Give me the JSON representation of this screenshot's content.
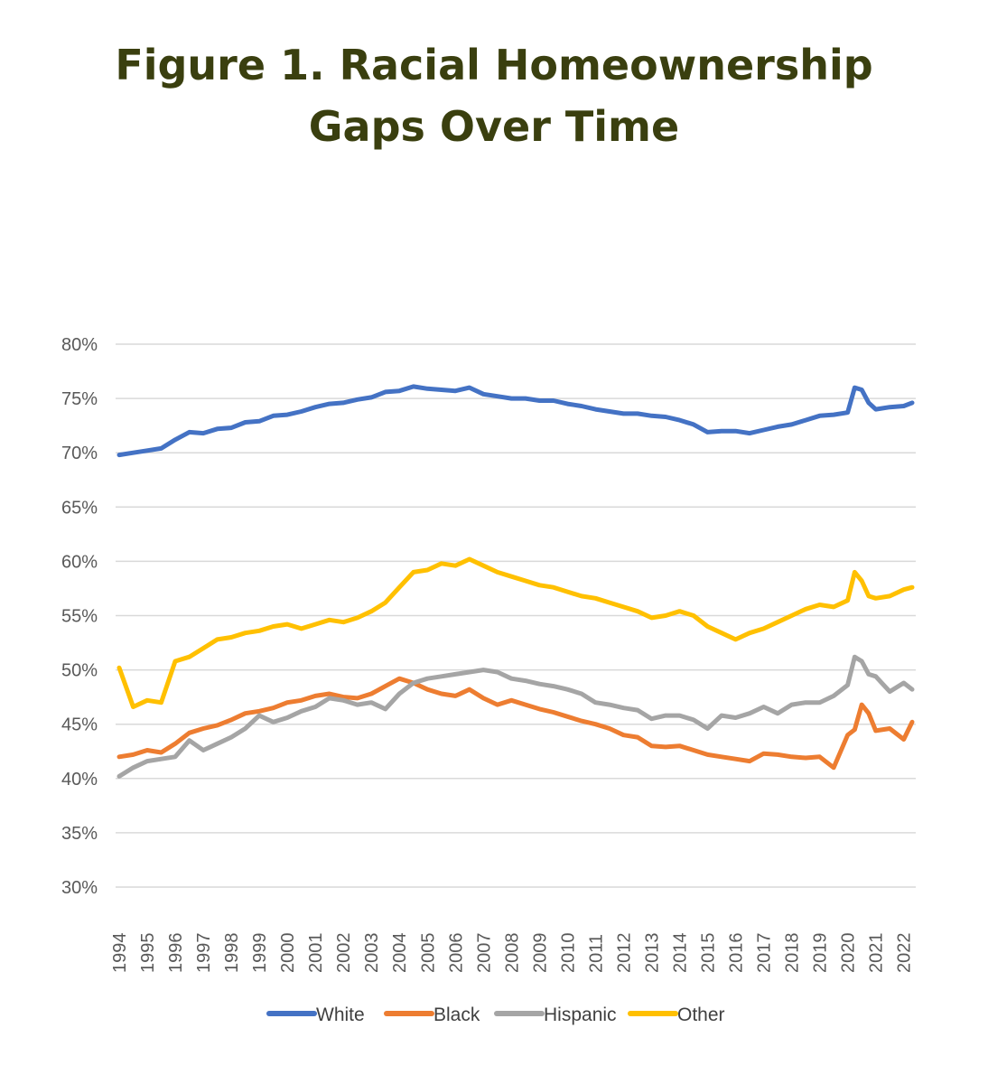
{
  "title": {
    "line1": "Figure 1. Racial Homeownership",
    "line2": "Gaps Over Time"
  },
  "chart_data": {
    "type": "line",
    "title": "Figure 1. Racial Homeownership Gaps Over Time",
    "xlabel": "",
    "ylabel": "",
    "ylim": [
      30,
      80
    ],
    "yticks": [
      30,
      35,
      40,
      45,
      50,
      55,
      60,
      65,
      70,
      75,
      80
    ],
    "ytick_labels": [
      "30%",
      "35%",
      "40%",
      "45%",
      "50%",
      "55%",
      "60%",
      "65%",
      "70%",
      "75%",
      "80%"
    ],
    "xlim": [
      1994,
      2022.3
    ],
    "xtick_labels": [
      "1994",
      "1995",
      "1996",
      "1997",
      "1998",
      "1999",
      "2000",
      "2001",
      "2002",
      "2003",
      "2004",
      "2005",
      "2006",
      "2007",
      "2008",
      "2009",
      "2010",
      "2011",
      "2012",
      "2013",
      "2014",
      "2015",
      "2016",
      "2017",
      "2018",
      "2019",
      "2020",
      "2021",
      "2022"
    ],
    "grid": true,
    "legend_position": "bottom",
    "series": [
      {
        "name": "White",
        "color": "#4472c4",
        "x": [
          1994,
          1994.5,
          1995,
          1995.5,
          1996,
          1996.5,
          1997,
          1997.5,
          1998,
          1998.5,
          1999,
          1999.5,
          2000,
          2000.5,
          2001,
          2001.5,
          2002,
          2002.5,
          2003,
          2003.5,
          2004,
          2004.5,
          2005,
          2005.5,
          2006,
          2006.5,
          2007,
          2007.5,
          2008,
          2008.5,
          2009,
          2009.5,
          2010,
          2010.5,
          2011,
          2011.5,
          2012,
          2012.5,
          2013,
          2013.5,
          2014,
          2014.5,
          2015,
          2015.5,
          2016,
          2016.5,
          2017,
          2017.5,
          2018,
          2018.5,
          2019,
          2019.5,
          2020,
          2020.25,
          2020.5,
          2020.75,
          2021,
          2021.5,
          2022,
          2022.3
        ],
        "values": [
          69.8,
          70.0,
          70.2,
          70.4,
          71.2,
          71.9,
          71.8,
          72.2,
          72.3,
          72.8,
          72.9,
          73.4,
          73.5,
          73.8,
          74.2,
          74.5,
          74.6,
          74.9,
          75.1,
          75.6,
          75.7,
          76.1,
          75.9,
          75.8,
          75.7,
          76.0,
          75.4,
          75.2,
          75.0,
          75.0,
          74.8,
          74.8,
          74.5,
          74.3,
          74.0,
          73.8,
          73.6,
          73.6,
          73.4,
          73.3,
          73.0,
          72.6,
          71.9,
          72.0,
          72.0,
          71.8,
          72.1,
          72.4,
          72.6,
          73.0,
          73.4,
          73.5,
          73.7,
          76.0,
          75.8,
          74.6,
          74.0,
          74.2,
          74.3,
          74.6
        ]
      },
      {
        "name": "Black",
        "color": "#ed7d31",
        "x": [
          1994,
          1994.5,
          1995,
          1995.5,
          1996,
          1996.5,
          1997,
          1997.5,
          1998,
          1998.5,
          1999,
          1999.5,
          2000,
          2000.5,
          2001,
          2001.5,
          2002,
          2002.5,
          2003,
          2003.5,
          2004,
          2004.5,
          2005,
          2005.5,
          2006,
          2006.5,
          2007,
          2007.5,
          2008,
          2008.5,
          2009,
          2009.5,
          2010,
          2010.5,
          2011,
          2011.5,
          2012,
          2012.5,
          2013,
          2013.5,
          2014,
          2014.5,
          2015,
          2015.5,
          2016,
          2016.5,
          2017,
          2017.5,
          2018,
          2018.5,
          2019,
          2019.5,
          2020,
          2020.25,
          2020.5,
          2020.75,
          2021,
          2021.5,
          2022,
          2022.3
        ],
        "values": [
          42.0,
          42.2,
          42.6,
          42.4,
          43.2,
          44.2,
          44.6,
          44.9,
          45.4,
          46.0,
          46.2,
          46.5,
          47.0,
          47.2,
          47.6,
          47.8,
          47.5,
          47.4,
          47.8,
          48.5,
          49.2,
          48.8,
          48.2,
          47.8,
          47.6,
          48.2,
          47.4,
          46.8,
          47.2,
          46.8,
          46.4,
          46.1,
          45.7,
          45.3,
          45.0,
          44.6,
          44.0,
          43.8,
          43.0,
          42.9,
          43.0,
          42.6,
          42.2,
          42.0,
          41.8,
          41.6,
          42.3,
          42.2,
          42.0,
          41.9,
          42.0,
          41.0,
          44.0,
          44.5,
          46.8,
          46.0,
          44.4,
          44.6,
          43.6,
          45.2
        ]
      },
      {
        "name": "Hispanic",
        "color": "#a5a5a5",
        "x": [
          1994,
          1994.5,
          1995,
          1995.5,
          1996,
          1996.5,
          1997,
          1997.5,
          1998,
          1998.5,
          1999,
          1999.5,
          2000,
          2000.5,
          2001,
          2001.5,
          2002,
          2002.5,
          2003,
          2003.5,
          2004,
          2004.5,
          2005,
          2005.5,
          2006,
          2006.5,
          2007,
          2007.5,
          2008,
          2008.5,
          2009,
          2009.5,
          2010,
          2010.5,
          2011,
          2011.5,
          2012,
          2012.5,
          2013,
          2013.5,
          2014,
          2014.5,
          2015,
          2015.5,
          2016,
          2016.5,
          2017,
          2017.5,
          2018,
          2018.5,
          2019,
          2019.5,
          2020,
          2020.25,
          2020.5,
          2020.75,
          2021,
          2021.5,
          2022,
          2022.3
        ],
        "values": [
          40.2,
          41.0,
          41.6,
          41.8,
          42.0,
          43.5,
          42.6,
          43.2,
          43.8,
          44.6,
          45.8,
          45.2,
          45.6,
          46.2,
          46.6,
          47.4,
          47.2,
          46.8,
          47.0,
          46.4,
          47.8,
          48.8,
          49.2,
          49.4,
          49.6,
          49.8,
          50.0,
          49.8,
          49.2,
          49.0,
          48.7,
          48.5,
          48.2,
          47.8,
          47.0,
          46.8,
          46.5,
          46.3,
          45.5,
          45.8,
          45.8,
          45.4,
          44.6,
          45.8,
          45.6,
          46.0,
          46.6,
          46.0,
          46.8,
          47.0,
          47.0,
          47.6,
          48.6,
          51.2,
          50.8,
          49.6,
          49.4,
          48.0,
          48.8,
          48.2
        ]
      },
      {
        "name": "Other",
        "color": "#ffc000",
        "x": [
          1994,
          1994.5,
          1995,
          1995.5,
          1996,
          1996.5,
          1997,
          1997.5,
          1998,
          1998.5,
          1999,
          1999.5,
          2000,
          2000.5,
          2001,
          2001.5,
          2002,
          2002.5,
          2003,
          2003.5,
          2004,
          2004.5,
          2005,
          2005.5,
          2006,
          2006.5,
          2007,
          2007.5,
          2008,
          2008.5,
          2009,
          2009.5,
          2010,
          2010.5,
          2011,
          2011.5,
          2012,
          2012.5,
          2013,
          2013.5,
          2014,
          2014.5,
          2015,
          2015.5,
          2016,
          2016.5,
          2017,
          2017.5,
          2018,
          2018.5,
          2019,
          2019.5,
          2020,
          2020.25,
          2020.5,
          2020.75,
          2021,
          2021.5,
          2022,
          2022.3
        ],
        "values": [
          50.2,
          46.6,
          47.2,
          47.0,
          50.8,
          51.2,
          52.0,
          52.8,
          53.0,
          53.4,
          53.6,
          54.0,
          54.2,
          53.8,
          54.2,
          54.6,
          54.4,
          54.8,
          55.4,
          56.2,
          57.6,
          59.0,
          59.2,
          59.8,
          59.6,
          60.2,
          59.6,
          59.0,
          58.6,
          58.2,
          57.8,
          57.6,
          57.2,
          56.8,
          56.6,
          56.2,
          55.8,
          55.4,
          54.8,
          55.0,
          55.4,
          55.0,
          54.0,
          53.4,
          52.8,
          53.4,
          53.8,
          54.4,
          55.0,
          55.6,
          56.0,
          55.8,
          56.4,
          59.0,
          58.2,
          56.8,
          56.6,
          56.8,
          57.4,
          57.6
        ]
      }
    ]
  }
}
